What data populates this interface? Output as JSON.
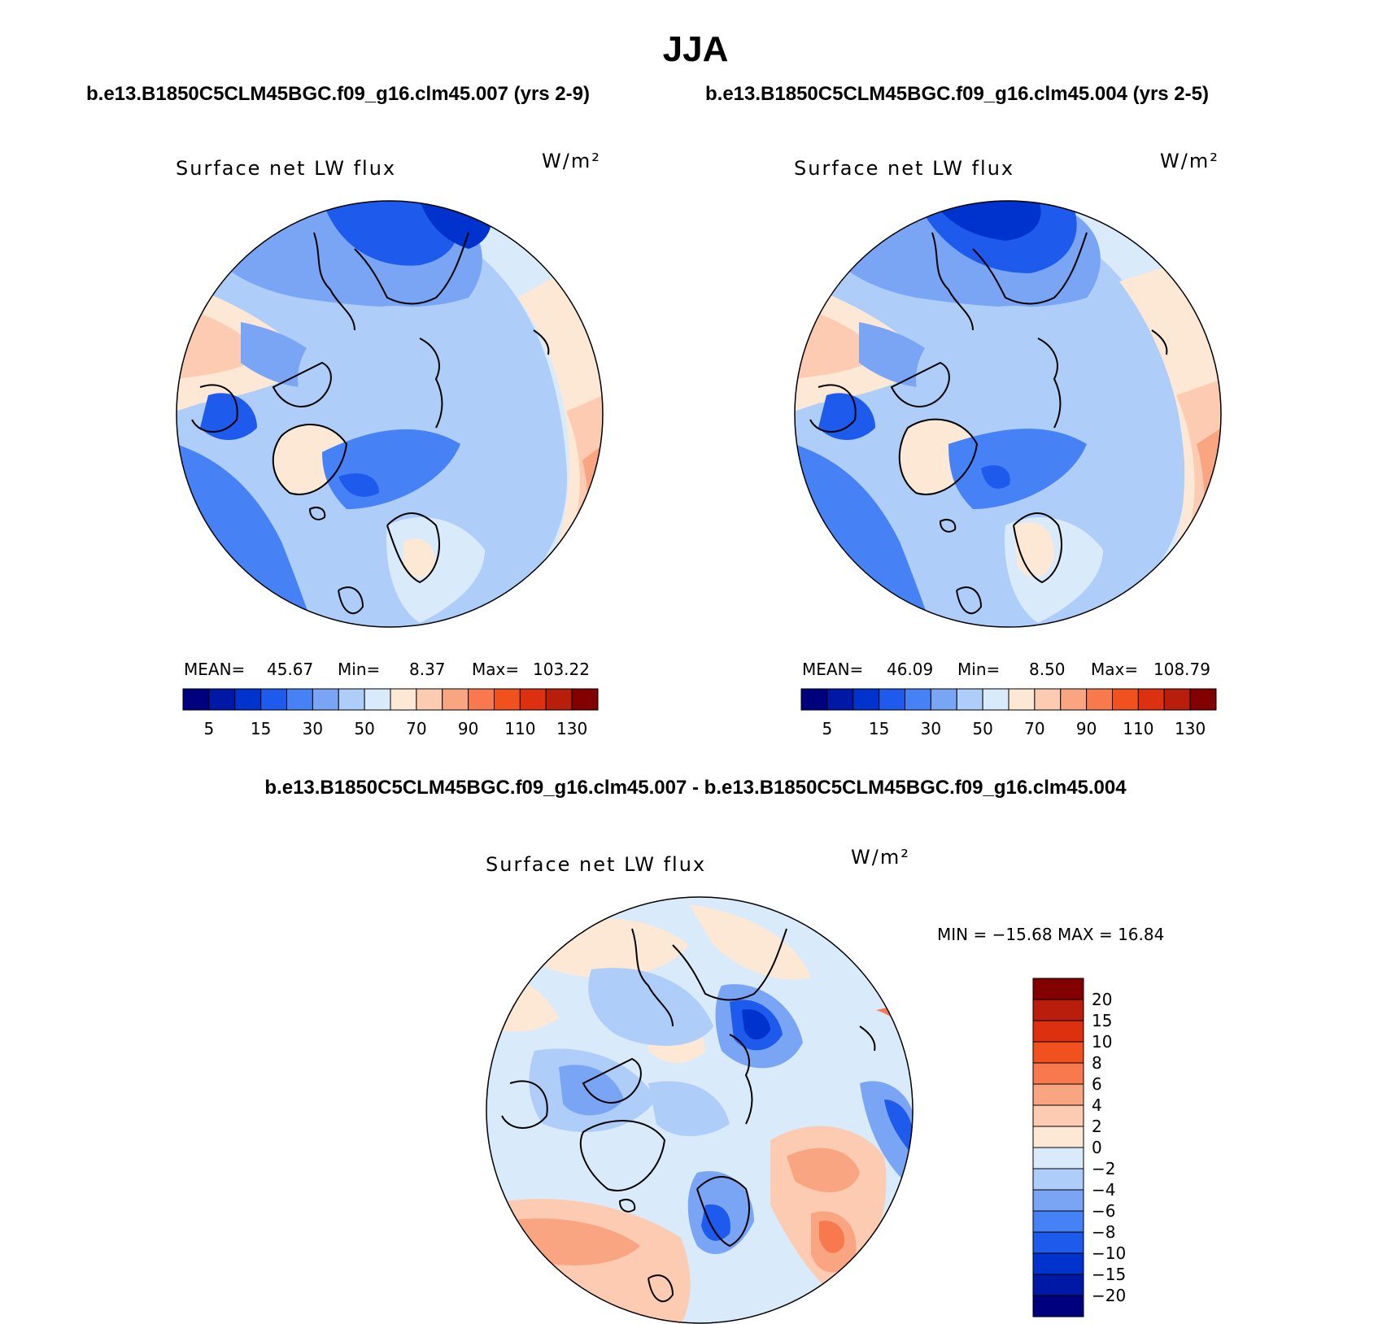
{
  "figure": {
    "season": "JJA",
    "case_1_title": "b.e13.B1850C5CLM45BGC.f09_g16.clm45.007 (yrs 2-9)",
    "case_2_title": "b.e13.B1850C5CLM45BGC.f09_g16.clm45.004 (yrs 2-5)",
    "diff_title": "b.e13.B1850C5CLM45BGC.f09_g16.clm45.007 - b.e13.B1850C5CLM45BGC.f09_g16.clm45.004"
  },
  "panels": {
    "left": {
      "variable": "Surface net LW flux",
      "units": "W/m²",
      "mean_label": "MEAN=",
      "mean": "45.67",
      "min_label": "Min=",
      "min": "8.37",
      "max_label": "Max=",
      "max": "103.22"
    },
    "right": {
      "variable": "Surface net LW flux",
      "units": "W/m²",
      "mean_label": "MEAN=",
      "mean": "46.09",
      "min_label": "Min=",
      "min": "8.50",
      "max_label": "Max=",
      "max": "108.79"
    },
    "diff": {
      "variable": "Surface net LW flux",
      "units": "W/m²",
      "minmax": "MIN = −15.68 MAX =   16.84"
    }
  },
  "colorbars": {
    "abs_colors": [
      "#00007f",
      "#0018a6",
      "#0032cd",
      "#1e5aeb",
      "#4682f5",
      "#7aa5f5",
      "#aecdf8",
      "#d9eafb",
      "#fde8d6",
      "#fccbb2",
      "#f9a582",
      "#f7794d",
      "#f1501f",
      "#dc3010",
      "#b91d0c",
      "#820000"
    ],
    "abs_labels": [
      "5",
      "15",
      "30",
      "50",
      "70",
      "90",
      "110",
      "130"
    ],
    "diff_colors": [
      "#00007f",
      "#0018a6",
      "#0032cd",
      "#1e5aeb",
      "#4682f5",
      "#7aa5f5",
      "#aecdf8",
      "#d9eafb",
      "#fde8d6",
      "#fccbb2",
      "#f9a582",
      "#f7794d",
      "#f1501f",
      "#dc3010",
      "#b91d0c",
      "#820000"
    ],
    "diff_labels": [
      "−20",
      "−15",
      "−10",
      "−8",
      "−6",
      "−4",
      "−2",
      "0",
      "2",
      "4",
      "6",
      "8",
      "10",
      "15",
      "20"
    ]
  }
}
